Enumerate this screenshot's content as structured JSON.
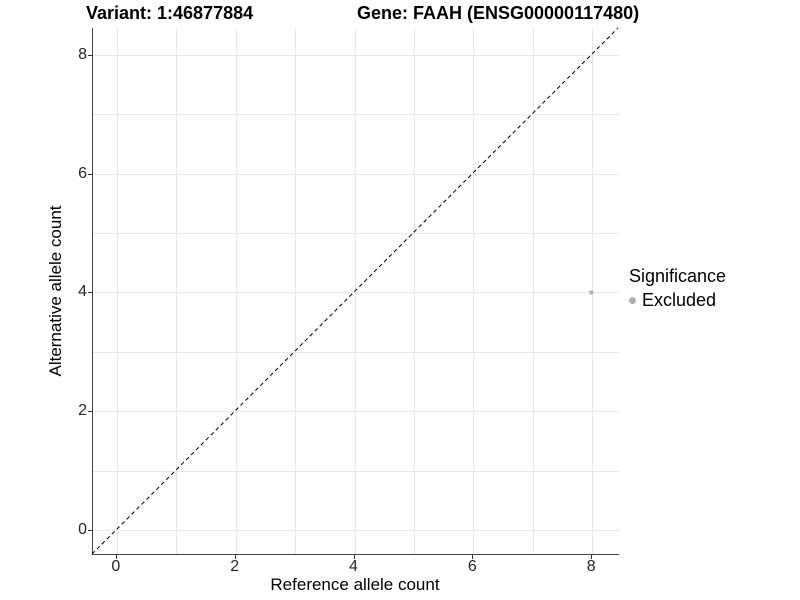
{
  "header": {
    "variant_title": "Variant: 1:46877884",
    "gene_title": "Gene: FAAH (ENSG00000117480)"
  },
  "chart_data": {
    "type": "scatter",
    "xlabel": "Reference allele count",
    "ylabel": "Alternative allele count",
    "xlim": [
      -0.4,
      8.45
    ],
    "ylim": [
      -0.4,
      8.45
    ],
    "x_ticks": [
      0,
      2,
      4,
      6,
      8
    ],
    "y_ticks": [
      0,
      2,
      4,
      6,
      8
    ],
    "grid_step": 1,
    "grid_max": 8,
    "grid_on": true,
    "series": [
      {
        "name": "Excluded",
        "color": "#b8b8b8",
        "points": [
          {
            "x": 8,
            "y": 4
          }
        ]
      }
    ],
    "reference_line": {
      "kind": "identity",
      "style": "dashed",
      "color": "#000000",
      "dash": "4 3"
    },
    "legend": {
      "title": "Significance",
      "position": "right",
      "entries": [
        {
          "label": "Excluded",
          "color": "#b0b0b0"
        }
      ]
    }
  },
  "style_colors": {
    "grid": "#e8e8e8",
    "axis_line": "#464646",
    "tick": "#333333",
    "tick_label": "#262626",
    "point": "#b8b8b8",
    "legend_dot": "#b0b0b0"
  }
}
